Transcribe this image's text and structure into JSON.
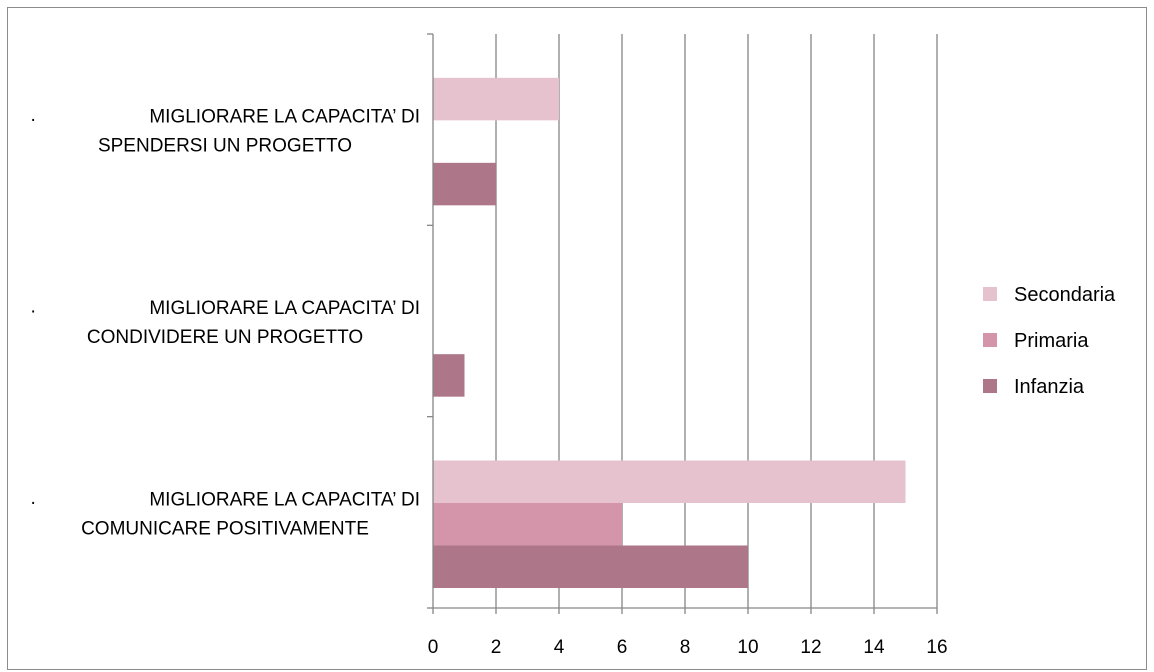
{
  "chart_data": {
    "type": "bar",
    "orientation": "horizontal",
    "categories": [
      {
        "bullet": "·",
        "line1": "MIGLIORARE LA CAPACITA’ DI",
        "line2": "SPENDERSI UN PROGETTO"
      },
      {
        "bullet": "·",
        "line1": "MIGLIORARE LA CAPACITA’ DI",
        "line2": "CONDIVIDERE UN PROGETTO"
      },
      {
        "bullet": "·",
        "line1": "MIGLIORARE LA CAPACITA’ DI",
        "line2": "COMUNICARE POSITIVAMENTE"
      }
    ],
    "series": [
      {
        "name": "Secondaria",
        "color": "#e6c1ce",
        "values": [
          4,
          0,
          15
        ]
      },
      {
        "name": "Primaria",
        "color": "#d494a9",
        "values": [
          0,
          0,
          6
        ]
      },
      {
        "name": "Infanzia",
        "color": "#ad7789",
        "values": [
          2,
          1,
          10
        ]
      }
    ],
    "xlim": [
      0,
      16
    ],
    "xticks": [
      0,
      2,
      4,
      6,
      8,
      10,
      12,
      14,
      16
    ],
    "grid": "vertical",
    "legend_position": "right"
  }
}
